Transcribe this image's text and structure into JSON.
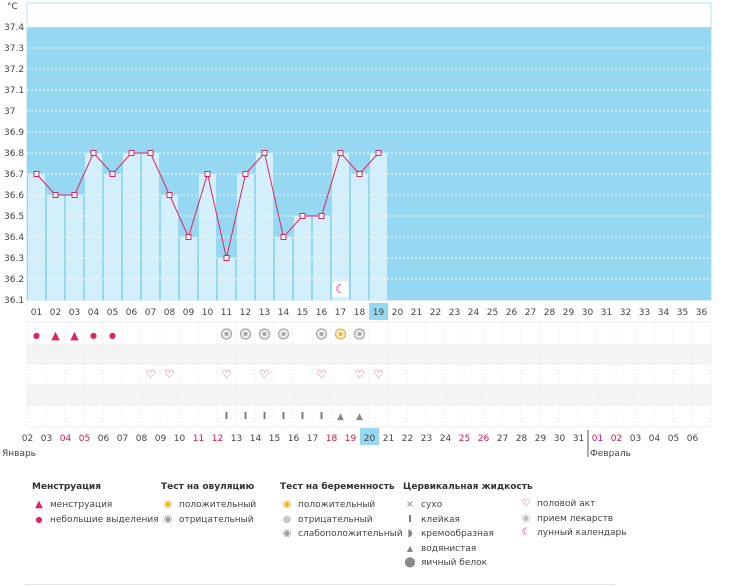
{
  "chart_data": {
    "type": "line",
    "unit_label": "°C",
    "ylim": [
      36.1,
      37.4
    ],
    "y_ticks": [
      "37.4",
      "37.3",
      "37.2",
      "37.1",
      "37",
      "36.9",
      "36.8",
      "36.7",
      "36.6",
      "36.5",
      "36.4",
      "36.3",
      "36.2",
      "36.1"
    ],
    "cycle_days": [
      "01",
      "02",
      "03",
      "04",
      "05",
      "06",
      "07",
      "08",
      "09",
      "10",
      "11",
      "12",
      "13",
      "14",
      "15",
      "16",
      "17",
      "18",
      "19",
      "20",
      "21",
      "22",
      "23",
      "24",
      "25",
      "26",
      "27",
      "28",
      "29",
      "30",
      "31",
      "32",
      "33",
      "34",
      "35",
      "36"
    ],
    "temperatures": [
      36.7,
      36.6,
      36.6,
      36.8,
      36.7,
      36.8,
      36.8,
      36.6,
      36.4,
      36.7,
      36.3,
      36.7,
      36.8,
      36.4,
      36.5,
      36.5,
      36.8,
      36.7,
      36.8
    ],
    "current_day_index": 18,
    "series_color": "#e0245e",
    "plot_bg_color": "#96d8f2",
    "bar_fill_color": "#d3effc",
    "calendar_dates": [
      "02",
      "03",
      "04",
      "05",
      "06",
      "07",
      "08",
      "09",
      "10",
      "11",
      "12",
      "13",
      "14",
      "15",
      "16",
      "17",
      "18",
      "19",
      "20",
      "21",
      "22",
      "23",
      "24",
      "25",
      "26",
      "27",
      "28",
      "29",
      "30",
      "31",
      "01",
      "02",
      "03",
      "04",
      "05",
      "06"
    ],
    "red_dates": [
      2,
      3,
      9,
      10,
      16,
      17,
      23,
      24,
      30,
      31
    ],
    "today_date_index": 18,
    "month_left": "Январь",
    "month_right": "Февраль",
    "month_break_index": 30,
    "marks": {
      "menstruation": [
        {
          "day": 0,
          "kind": "small"
        },
        {
          "day": 1,
          "kind": "full"
        },
        {
          "day": 2,
          "kind": "full"
        },
        {
          "day": 3,
          "kind": "small"
        },
        {
          "day": 4,
          "kind": "small"
        }
      ],
      "tests": [
        {
          "day": 10,
          "kind": "neg"
        },
        {
          "day": 11,
          "kind": "neg"
        },
        {
          "day": 12,
          "kind": "neg"
        },
        {
          "day": 13,
          "kind": "neg"
        },
        {
          "day": 15,
          "kind": "neg"
        },
        {
          "day": 16,
          "kind": "pos"
        },
        {
          "day": 17,
          "kind": "neg"
        }
      ],
      "intercourse": [
        6,
        7,
        10,
        12,
        15,
        17,
        18
      ],
      "cervical": [
        {
          "day": 10,
          "kind": "sticky"
        },
        {
          "day": 11,
          "kind": "sticky"
        },
        {
          "day": 12,
          "kind": "sticky"
        },
        {
          "day": 13,
          "kind": "sticky"
        },
        {
          "day": 14,
          "kind": "sticky"
        },
        {
          "day": 15,
          "kind": "sticky"
        },
        {
          "day": 16,
          "kind": "watery"
        },
        {
          "day": 17,
          "kind": "watery"
        }
      ],
      "lunar_day": 16
    }
  },
  "legend": {
    "menstruation": {
      "title": "Менструация",
      "items": [
        "менструация",
        "небольшие выделения"
      ]
    },
    "ovulation_test": {
      "title": "Тест на овуляцию",
      "items": [
        "положительный",
        "отрицательный"
      ]
    },
    "pregnancy_test": {
      "title": "Тест на беременность",
      "items": [
        "положительный",
        "отрицательный",
        "слабоположительный"
      ]
    },
    "cervical_fluid": {
      "title": "Цервикальная жидкость",
      "items": [
        "сухо",
        "клейкая",
        "кремообразная",
        "водянистая",
        "яичный белок"
      ]
    },
    "other": {
      "items": [
        "половой акт",
        "прием лекарств",
        "лунный календарь"
      ]
    }
  }
}
